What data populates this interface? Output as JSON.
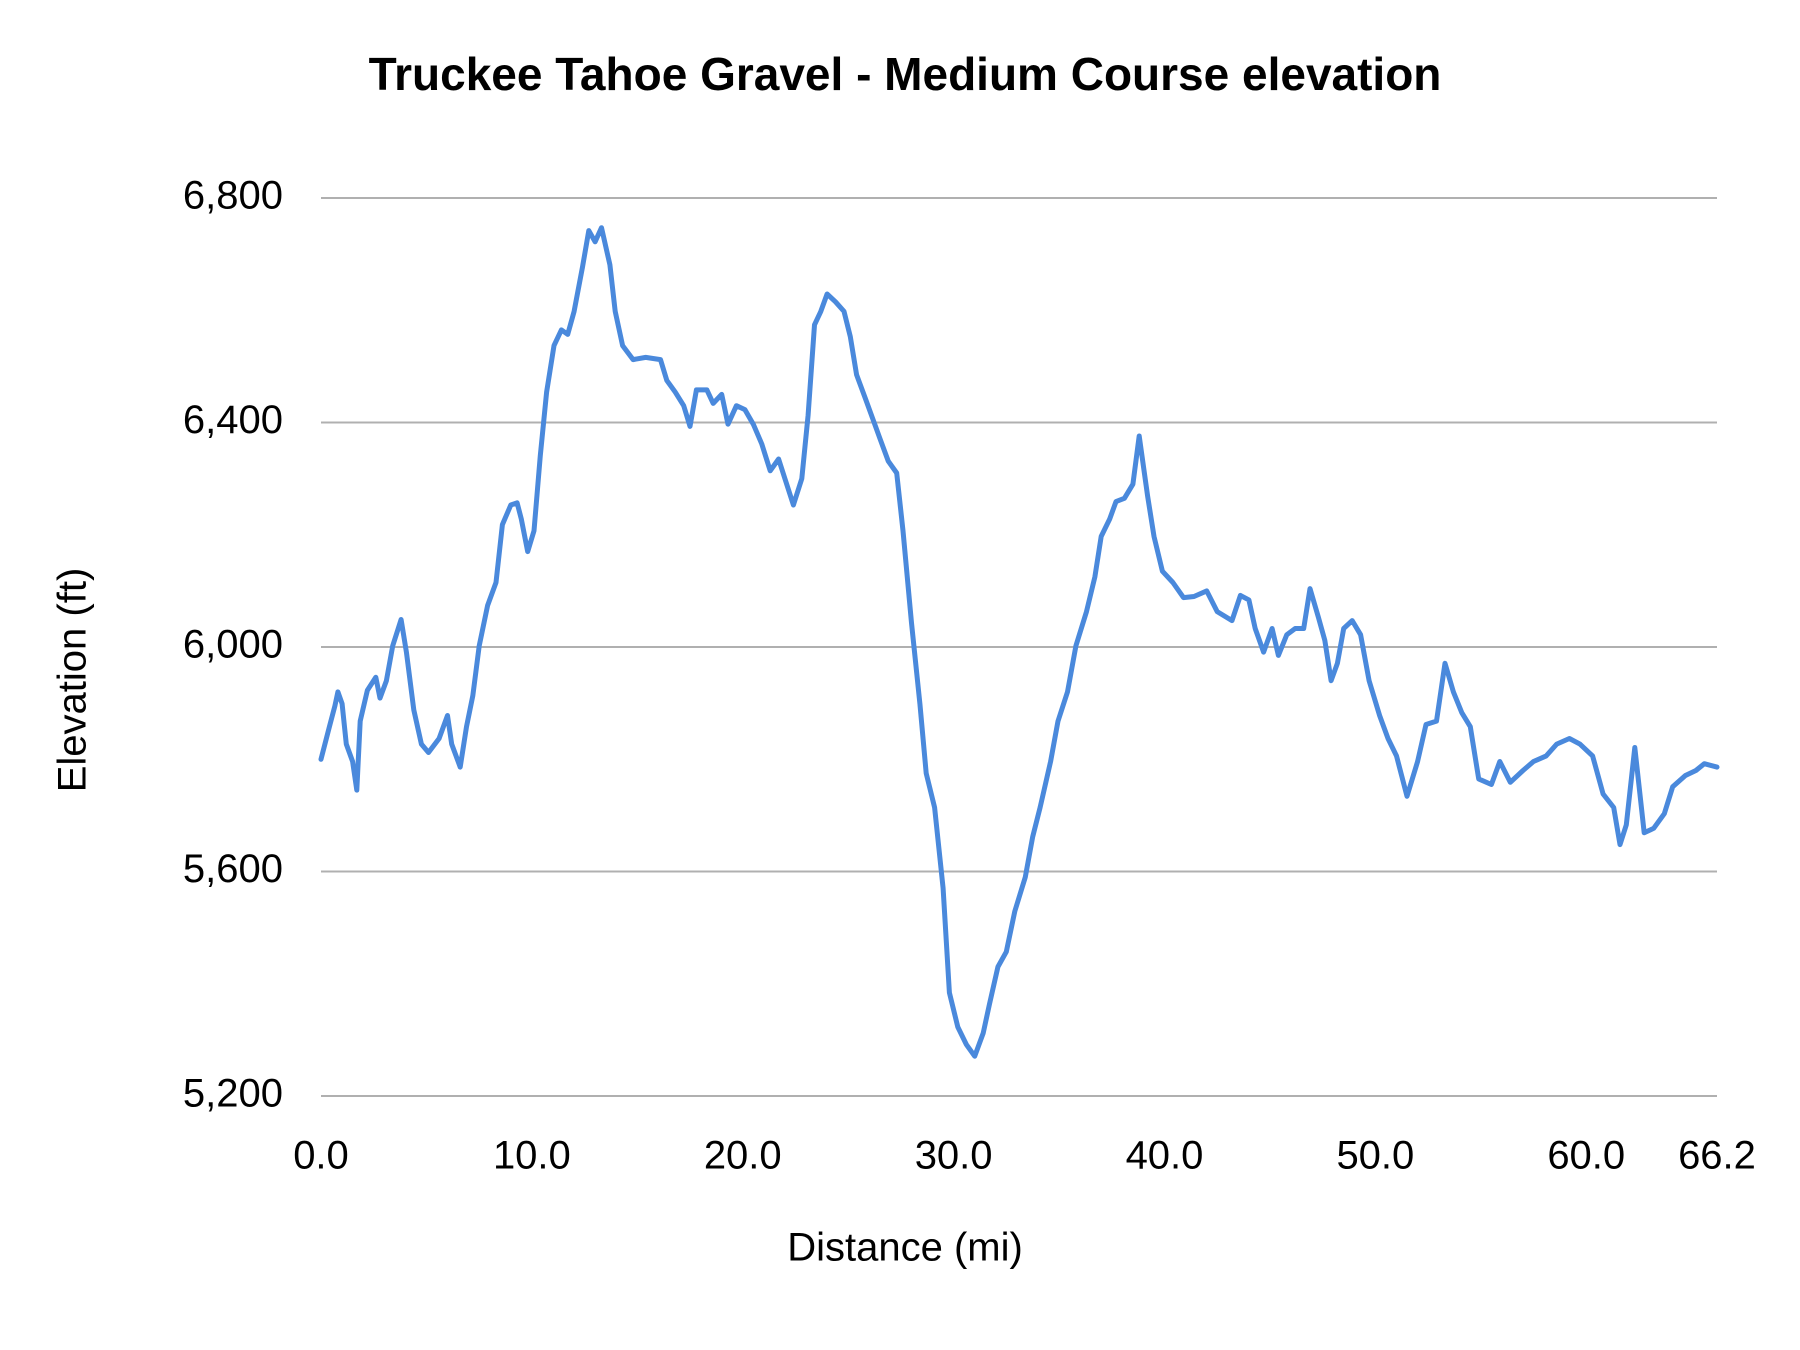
{
  "chart_data": {
    "type": "line",
    "title": "Truckee Tahoe Gravel - Medium Course elevation",
    "x_label": "Distance (mi)",
    "y_label": "Elevation (ft)",
    "color": "#4a89dc",
    "grid": true,
    "xlim": [
      0,
      66.2
    ],
    "ylim": [
      5200,
      6800
    ],
    "xticks": [
      {
        "value": 0,
        "label": "0.0"
      },
      {
        "value": 10,
        "label": "10.0"
      },
      {
        "value": 20,
        "label": "20.0"
      },
      {
        "value": 30,
        "label": "30.0"
      },
      {
        "value": 40,
        "label": "40.0"
      },
      {
        "value": 50,
        "label": "50.0"
      },
      {
        "value": 60,
        "label": "60.0"
      },
      66.2
    ],
    "yticks": [
      {
        "value": 5200,
        "label": "5,200"
      },
      {
        "value": 5600,
        "label": "5,600"
      },
      {
        "value": 6000,
        "label": "6,000"
      },
      {
        "value": 6400,
        "label": "6,400"
      },
      {
        "value": 6800,
        "label": "6,800"
      }
    ],
    "x": [
      0,
      0.4,
      0.66,
      0.8,
      1.0,
      1.2,
      1.5,
      1.7,
      1.86,
      2.2,
      2.6,
      2.8,
      3.1,
      3.4,
      3.8,
      4.05,
      4.4,
      4.76,
      5.1,
      5.6,
      6.0,
      6.2,
      6.6,
      6.9,
      7.2,
      7.5,
      7.9,
      8.3,
      8.6,
      9.0,
      9.3,
      9.5,
      9.8,
      10.1,
      10.4,
      10.7,
      11.05,
      11.4,
      11.7,
      12.0,
      12.4,
      12.7,
      13.0,
      13.3,
      13.7,
      13.95,
      14.3,
      14.8,
      15.4,
      16.1,
      16.4,
      16.8,
      17.2,
      17.5,
      17.8,
      18.3,
      18.6,
      19.0,
      19.3,
      19.7,
      20.1,
      20.5,
      20.9,
      21.3,
      21.7,
      22.0,
      22.4,
      22.8,
      23.1,
      23.4,
      23.7,
      24.0,
      24.4,
      24.8,
      25.1,
      25.4,
      25.8,
      26.2,
      26.5,
      26.9,
      27.3,
      27.6,
      28.0,
      28.4,
      28.7,
      29.1,
      29.5,
      29.8,
      30.2,
      30.6,
      31.0,
      31.4,
      31.7,
      32.1,
      32.5,
      32.9,
      33.4,
      33.75,
      34.1,
      34.6,
      34.95,
      35.4,
      35.8,
      36.3,
      36.7,
      37.0,
      37.4,
      37.7,
      38.1,
      38.5,
      38.8,
      39.2,
      39.5,
      39.9,
      40.4,
      40.9,
      41.4,
      42.0,
      42.5,
      43.2,
      43.6,
      44.0,
      44.3,
      44.7,
      45.1,
      45.4,
      45.8,
      46.2,
      46.6,
      46.9,
      47.3,
      47.6,
      47.9,
      48.2,
      48.5,
      48.9,
      49.3,
      49.7,
      50.2,
      50.6,
      51.0,
      51.5,
      52.0,
      52.4,
      52.9,
      53.3,
      53.7,
      54.1,
      54.5,
      54.9,
      55.5,
      55.9,
      56.4,
      57.0,
      57.5,
      58.1,
      58.6,
      59.2,
      59.7,
      60.3,
      60.8,
      61.3,
      61.6,
      61.9,
      62.3,
      62.75,
      63.2,
      63.7,
      64.1,
      64.7,
      65.2,
      65.6,
      66.2
    ],
    "values": [
      5800,
      5858,
      5895,
      5920,
      5899,
      5827,
      5796,
      5745,
      5868,
      5923,
      5946,
      5909,
      5940,
      6002,
      6049,
      5991,
      5888,
      5827,
      5812,
      5837,
      5878,
      5827,
      5786,
      5858,
      5913,
      6002,
      6074,
      6115,
      6218,
      6253,
      6257,
      6228,
      6170,
      6207,
      6341,
      6454,
      6537,
      6565,
      6557,
      6598,
      6677,
      6742,
      6722,
      6747,
      6681,
      6598,
      6537,
      6512,
      6516,
      6512,
      6475,
      6454,
      6430,
      6393,
      6458,
      6458,
      6434,
      6450,
      6397,
      6430,
      6423,
      6397,
      6362,
      6314,
      6335,
      6300,
      6253,
      6300,
      6413,
      6574,
      6598,
      6629,
      6615,
      6598,
      6553,
      6485,
      6444,
      6403,
      6372,
      6331,
      6310,
      6207,
      6043,
      5899,
      5775,
      5714,
      5570,
      5384,
      5323,
      5292,
      5271,
      5312,
      5364,
      5430,
      5457,
      5529,
      5590,
      5662,
      5714,
      5796,
      5868,
      5920,
      6002,
      6063,
      6125,
      6197,
      6228,
      6259,
      6265,
      6290,
      6376,
      6269,
      6197,
      6135,
      6115,
      6088,
      6090,
      6100,
      6063,
      6047,
      6092,
      6084,
      6033,
      5991,
      6033,
      5985,
      6022,
      6033,
      6033,
      6104,
      6053,
      6012,
      5940,
      5971,
      6033,
      6047,
      6022,
      5940,
      5878,
      5837,
      5806,
      5734,
      5796,
      5862,
      5868,
      5971,
      5920,
      5883,
      5858,
      5765,
      5755,
      5796,
      5759,
      5780,
      5796,
      5806,
      5827,
      5837,
      5827,
      5806,
      5738,
      5714,
      5648,
      5683,
      5821,
      5669,
      5677,
      5703,
      5751,
      5771,
      5780,
      5792,
      5786
    ]
  }
}
